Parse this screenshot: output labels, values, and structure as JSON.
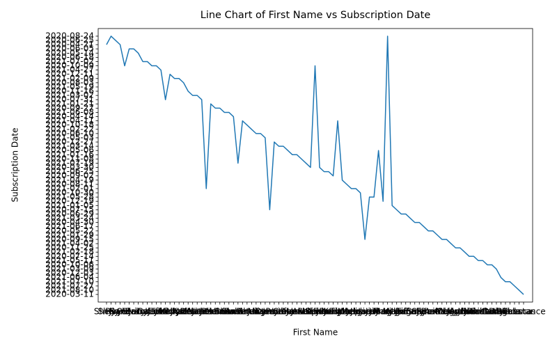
{
  "chart_data": {
    "type": "line",
    "title": "Line Chart of First Name vs Subscription Date",
    "x_label": "First Name",
    "y_label": "Subscription Date",
    "categories": [
      "Shelly",
      "Sheryl",
      "Ryan",
      "Joyce",
      "Sandra",
      "Calvin",
      "Stacy",
      "Jerry",
      "Brandon",
      "Tracy",
      "Gabriel",
      "Kevin",
      "Jeffrey",
      "Tammy",
      "Kelly",
      "Michael",
      "Nicole",
      "Kathy",
      "Wanda",
      "Debra",
      "Heather",
      "Natalie",
      "Vanessa",
      "Jason",
      "Rachel",
      "Marcus",
      "Brian",
      "Shawn",
      "Sarah",
      "Robert",
      "Amanda",
      "Peter",
      "Sherry",
      "Julie",
      "Victor",
      "Nancy",
      "Dennis",
      "Paul",
      "Jennifer",
      "Laura",
      "Steven",
      "Mark",
      "Jesse",
      "Janet",
      "Ashley",
      "Lisa",
      "Stephen",
      "Sharon",
      "Kimberly",
      "Edward",
      "Patrick",
      "Kristen",
      "Jonathan",
      "Timothy",
      "Joseph",
      "Melissa",
      "Jessica",
      "Jeremy",
      "Jacob",
      "Jill",
      "Jimmy",
      "Mary",
      "Mariah",
      "Kyle",
      "Megan",
      "Monica",
      "Jorge",
      "Tiffany",
      "Emily",
      "Susan",
      "Eric",
      "Jamie",
      "Samantha",
      "Barbara",
      "Anthony",
      "Molly",
      "Gregory",
      "Christina",
      "Jordan",
      "Andrea",
      "Justin",
      "Daniel",
      "Nicholas",
      "Richard",
      "Brittany",
      "Carla",
      "Donna",
      "Diana",
      "Angela",
      "Linda",
      "Rebecca",
      "Thomas",
      "Constance"
    ],
    "series": [
      {
        "color": "#1f77b4",
        "values": [
          59,
          61,
          60,
          59,
          54,
          58,
          58,
          57,
          55,
          55,
          54,
          54,
          53,
          46,
          52,
          51,
          51,
          50,
          48,
          47,
          47,
          46,
          25,
          45,
          44,
          44,
          43,
          43,
          42,
          31,
          41,
          40,
          39,
          38,
          38,
          37,
          20,
          36,
          35,
          35,
          34,
          33,
          33,
          32,
          31,
          30,
          54,
          30,
          29,
          29,
          28,
          41,
          27,
          26,
          25,
          25,
          24,
          13,
          23,
          23,
          34,
          22,
          61,
          21,
          20,
          19,
          19,
          18,
          17,
          17,
          16,
          15,
          15,
          14,
          13,
          13,
          12,
          11,
          11,
          10,
          9,
          9,
          8,
          8,
          7,
          7,
          6,
          4,
          3,
          3,
          2,
          1,
          0
        ]
      }
    ],
    "ylim": [
      -1.8,
      62.8
    ],
    "yticks": [
      {
        "value": 0,
        "label": "2020-03-11"
      },
      {
        "value": 1,
        "label": "2021-08-10"
      },
      {
        "value": 2,
        "label": "2021-07-27"
      },
      {
        "value": 3,
        "label": "2021-07-10"
      },
      {
        "value": 4,
        "label": "2021-06-04"
      },
      {
        "value": 5,
        "label": "2020-12-03"
      },
      {
        "value": 6,
        "label": "2021-03-09"
      },
      {
        "value": 7,
        "label": "2020-10-06"
      },
      {
        "value": 8,
        "label": "2021-05-11"
      },
      {
        "value": 9,
        "label": "2020-07-14"
      },
      {
        "value": 10,
        "label": "2021-02-18"
      },
      {
        "value": 11,
        "label": "2020-11-25"
      },
      {
        "value": 12,
        "label": "2021-04-02"
      },
      {
        "value": 13,
        "label": "2020-09-15"
      },
      {
        "value": 14,
        "label": "2021-01-29"
      },
      {
        "value": 15,
        "label": "2020-05-22"
      },
      {
        "value": 16,
        "label": "2021-06-17"
      },
      {
        "value": 17,
        "label": "2020-04-30"
      },
      {
        "value": 18,
        "label": "2021-03-24"
      },
      {
        "value": 19,
        "label": "2020-06-29"
      },
      {
        "value": 20,
        "label": "2020-07-15"
      },
      {
        "value": 21,
        "label": "2021-01-05"
      },
      {
        "value": 22,
        "label": "2020-12-19"
      },
      {
        "value": 23,
        "label": "2021-05-28"
      },
      {
        "value": 24,
        "label": "2020-10-30"
      },
      {
        "value": 25,
        "label": "2021-02-01"
      },
      {
        "value": 26,
        "label": "2020-08-11"
      },
      {
        "value": 27,
        "label": "2021-04-19"
      },
      {
        "value": 28,
        "label": "2020-09-02"
      },
      {
        "value": 29,
        "label": "2021-06-25"
      },
      {
        "value": 30,
        "label": "2020-03-30"
      },
      {
        "value": 31,
        "label": "2021-07-19"
      },
      {
        "value": 32,
        "label": "2020-11-08"
      },
      {
        "value": 33,
        "label": "2021-01-16"
      },
      {
        "value": 34,
        "label": "2020-05-06"
      },
      {
        "value": 35,
        "label": "2021-03-14"
      },
      {
        "value": 36,
        "label": "2020-12-27"
      },
      {
        "value": 37,
        "label": "2021-05-03"
      },
      {
        "value": 38,
        "label": "2020-06-10"
      },
      {
        "value": 39,
        "label": "2021-02-22"
      },
      {
        "value": 40,
        "label": "2020-10-18"
      },
      {
        "value": 41,
        "label": "2021-04-11"
      },
      {
        "value": 42,
        "label": "2020-04-14"
      },
      {
        "value": 43,
        "label": "2021-06-08"
      },
      {
        "value": 44,
        "label": "2020-09-27"
      },
      {
        "value": 45,
        "label": "2021-01-21"
      },
      {
        "value": 46,
        "label": "2020-07-31"
      },
      {
        "value": 47,
        "label": "2021-03-02"
      },
      {
        "value": 48,
        "label": "2020-11-16"
      },
      {
        "value": 49,
        "label": "2021-05-19"
      },
      {
        "value": 50,
        "label": "2020-08-03"
      },
      {
        "value": 51,
        "label": "2021-02-09"
      },
      {
        "value": 52,
        "label": "2020-12-11"
      },
      {
        "value": 53,
        "label": "2021-04-27"
      },
      {
        "value": 54,
        "label": "2020-10-09"
      },
      {
        "value": 55,
        "label": "2021-07-02"
      },
      {
        "value": 56,
        "label": "2020-06-18"
      },
      {
        "value": 57,
        "label": "2020-05-14"
      },
      {
        "value": 58,
        "label": "2020-06-05"
      },
      {
        "value": 59,
        "label": "2020-04-21"
      },
      {
        "value": 60,
        "label": "2020-06-25"
      },
      {
        "value": 61,
        "label": "2020-08-24"
      }
    ]
  }
}
